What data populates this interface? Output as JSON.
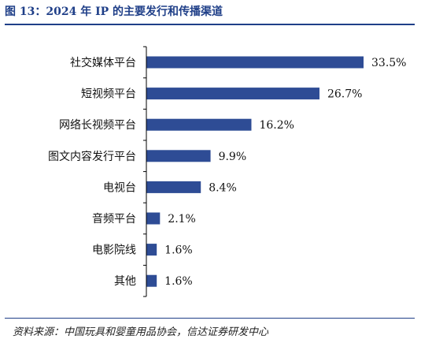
{
  "figure_title": "图 13：2024 年 IP 的主要发行和传播渠道",
  "source": "资料来源：中国玩具和婴童用品协会，信达证券研发中心",
  "colors": {
    "bar": "#2e4c95",
    "title": "#1f3f88",
    "axis": "#000000"
  },
  "chart_data": {
    "type": "bar",
    "orientation": "horizontal",
    "categories": [
      "社交媒体平台",
      "短视频平台",
      "网络长视频平台",
      "图文内容发行平台",
      "电视台",
      "音频平台",
      "电影院线",
      "其他"
    ],
    "values": [
      33.5,
      26.7,
      16.2,
      9.9,
      8.4,
      2.1,
      1.6,
      1.6
    ],
    "data_labels": [
      "33.5%",
      "26.7%",
      "16.2%",
      "9.9%",
      "8.4%",
      "2.1%",
      "1.6%",
      "1.6%"
    ],
    "xlim": [
      0,
      33.5
    ],
    "grid": false,
    "legend": "none"
  }
}
